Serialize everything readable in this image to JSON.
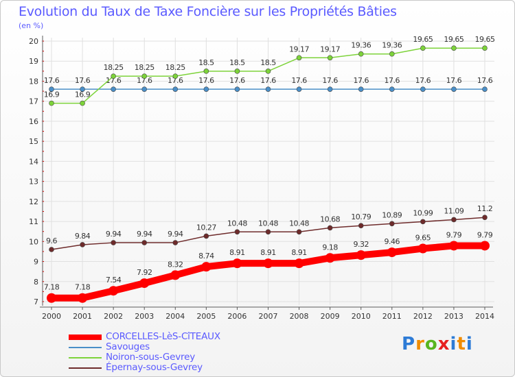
{
  "colors": {
    "title": "#5a5aff",
    "grid": "#e0e0e0",
    "axis": "#5a5a5a"
  },
  "chart_data": {
    "type": "line",
    "title": "Evolution du Taux de Taxe Foncière sur les Propriétés Bâties",
    "ylabel": "(en %)",
    "xlabel": "",
    "ylim": [
      7,
      20
    ],
    "yticks": [
      7,
      8,
      9,
      10,
      11,
      12,
      13,
      14,
      15,
      16,
      17,
      18,
      19,
      20
    ],
    "categories": [
      "2000",
      "2001",
      "2002",
      "2003",
      "2004",
      "2005",
      "2006",
      "2007",
      "2008",
      "2009",
      "2010",
      "2011",
      "2012",
      "2013",
      "2014"
    ],
    "series": [
      {
        "name": "CORCELLES-LèS-CîTEAUX",
        "color": "#ff0000",
        "values": [
          7.18,
          7.18,
          7.54,
          7.92,
          8.32,
          8.74,
          8.91,
          8.91,
          8.91,
          9.18,
          9.32,
          9.46,
          9.65,
          9.79,
          9.79
        ],
        "labels": [
          "7.18",
          "7.18",
          "7.54",
          "7.92",
          "8.32",
          "8.74",
          "8.91",
          "8.91",
          "8.91",
          "9.18",
          "9.32",
          "9.46",
          "9.65",
          "9.79",
          "9.79"
        ]
      },
      {
        "name": "Savouges",
        "color": "#4a8fc8",
        "values": [
          17.6,
          17.6,
          17.6,
          17.6,
          17.6,
          17.6,
          17.6,
          17.6,
          17.6,
          17.6,
          17.6,
          17.6,
          17.6,
          17.6,
          17.6
        ],
        "labels": [
          "17.6",
          "17.6",
          "17.6",
          "17.6",
          "17.6",
          "17.6",
          "17.6",
          "17.6",
          "17.6",
          "17.6",
          "17.6",
          "17.6",
          "17.6",
          "17.6",
          "17.6"
        ]
      },
      {
        "name": "Noiron-sous-Gevrey",
        "color": "#7dd33a",
        "values": [
          16.9,
          16.9,
          18.25,
          18.25,
          18.25,
          18.5,
          18.5,
          18.5,
          19.17,
          19.17,
          19.36,
          19.36,
          19.65,
          19.65,
          19.65
        ],
        "labels": [
          "16.9",
          "16.9",
          "18.25",
          "18.25",
          "18.25",
          "18.5",
          "18.5",
          "18.5",
          "19.17",
          "19.17",
          "19.36",
          "19.36",
          "19.65",
          "19.65",
          "19.65"
        ]
      },
      {
        "name": "Épernay-sous-Gevrey",
        "color": "#6e2b2b",
        "values": [
          9.6,
          9.84,
          9.94,
          9.94,
          9.94,
          10.27,
          10.48,
          10.48,
          10.48,
          10.68,
          10.79,
          10.89,
          10.99,
          11.09,
          11.2
        ],
        "labels": [
          "9.6",
          "9.84",
          "9.94",
          "9.94",
          "9.94",
          "10.27",
          "10.48",
          "10.48",
          "10.48",
          "10.68",
          "10.79",
          "10.89",
          "10.99",
          "11.09",
          "11.2"
        ]
      }
    ],
    "legend_position": "bottom-left",
    "grid": true
  },
  "logo": {
    "letters": [
      "P",
      "r",
      "o",
      "x",
      "i",
      "t",
      "i"
    ]
  }
}
